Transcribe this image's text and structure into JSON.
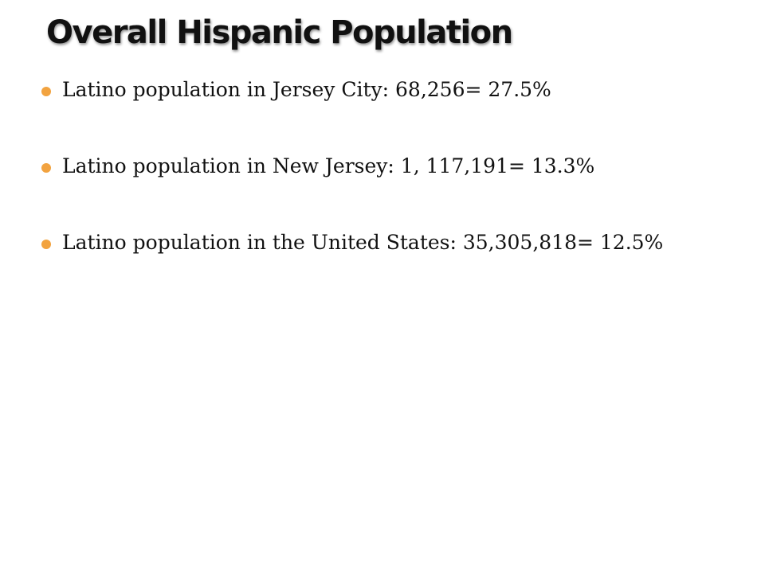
{
  "slide": {
    "title": "Overall Hispanic Population",
    "accent_color": "#f2a340",
    "bullets": [
      {
        "text": "Latino population in Jersey City: 68,256= 27.5%"
      },
      {
        "text": "Latino population in New Jersey: 1, 117,191= 13.3%"
      },
      {
        "text": "Latino population in the United States: 35,305,818= 12.5%"
      }
    ]
  }
}
